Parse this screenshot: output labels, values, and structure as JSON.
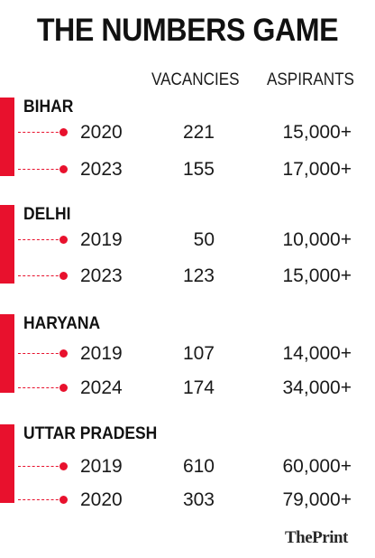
{
  "title": "THE NUMBERS GAME",
  "columns": {
    "vacancies": "VACANCIES",
    "aspirants": "ASPIRANTS"
  },
  "accent_color": "#e8112d",
  "sections": [
    {
      "state": "BIHAR",
      "rows": [
        {
          "year": "2020",
          "vacancies": "221",
          "aspirants": "15,000+"
        },
        {
          "year": "2023",
          "vacancies": "155",
          "aspirants": "17,000+"
        }
      ]
    },
    {
      "state": "DELHI",
      "rows": [
        {
          "year": "2019",
          "vacancies": "50",
          "aspirants": "10,000+"
        },
        {
          "year": "2023",
          "vacancies": "123",
          "aspirants": "15,000+"
        }
      ]
    },
    {
      "state": "HARYANA",
      "rows": [
        {
          "year": "2019",
          "vacancies": "107",
          "aspirants": "14,000+"
        },
        {
          "year": "2024",
          "vacancies": "174",
          "aspirants": "34,000+"
        }
      ]
    },
    {
      "state": "UTTAR PRADESH",
      "rows": [
        {
          "year": "2019",
          "vacancies": "610",
          "aspirants": "60,000+"
        },
        {
          "year": "2020",
          "vacancies": "303",
          "aspirants": "79,000+"
        }
      ]
    }
  ],
  "brand": "ThePrint"
}
